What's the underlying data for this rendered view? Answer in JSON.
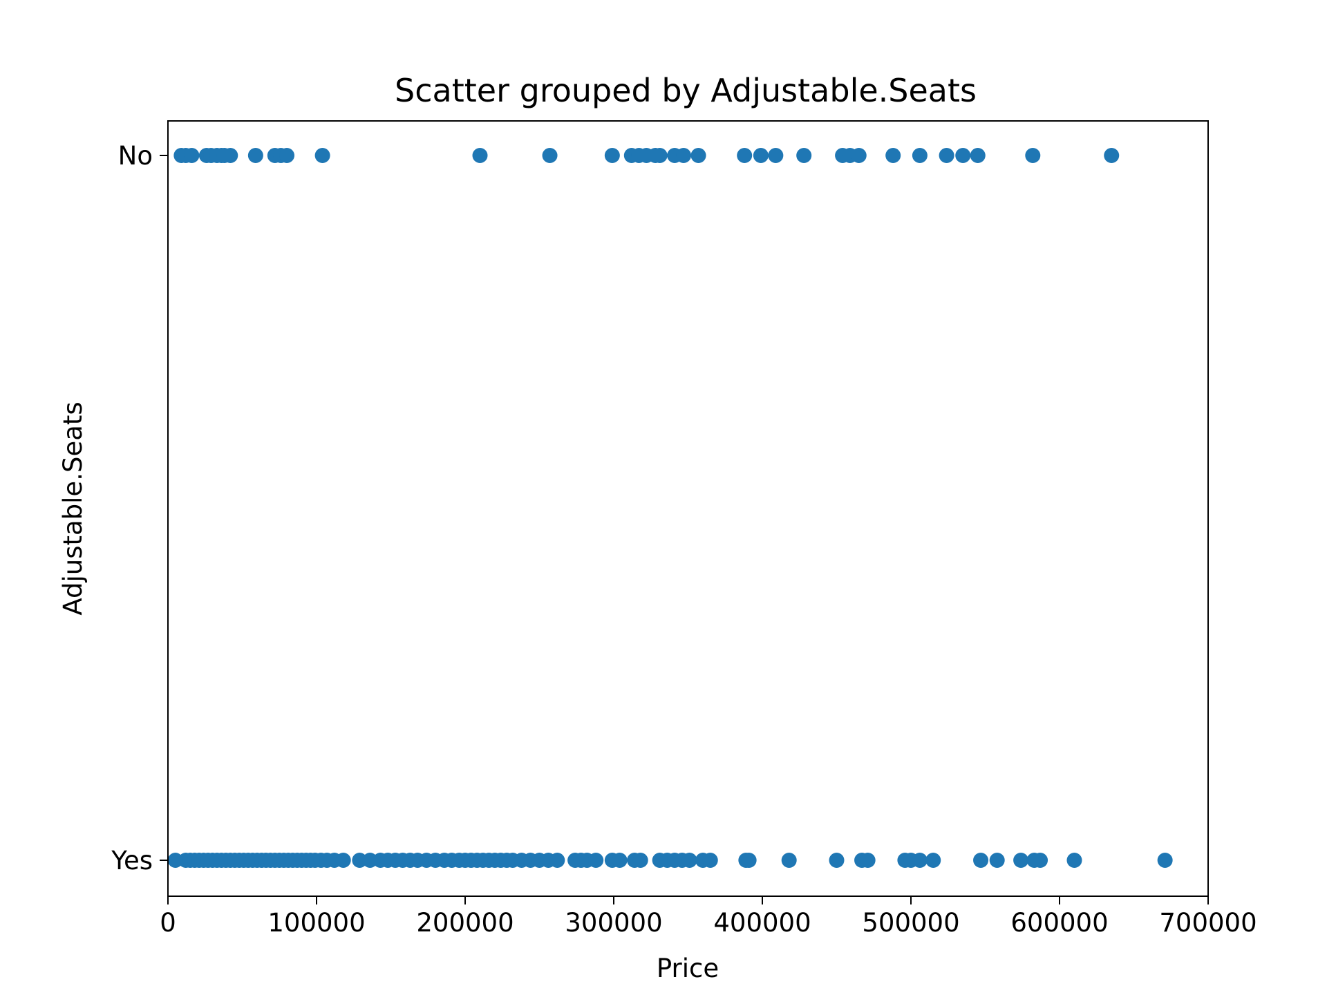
{
  "chart_data": {
    "type": "scatter",
    "title": "Scatter grouped by Adjustable.Seats",
    "xlabel": "Price",
    "ylabel": "Adjustable.Seats",
    "xlim": [
      0,
      700000
    ],
    "xticks": [
      0,
      100000,
      200000,
      300000,
      400000,
      500000,
      600000,
      700000
    ],
    "categories": [
      "Yes",
      "No"
    ],
    "grid": false,
    "color": "#1f77b4",
    "series": [
      {
        "category": "No",
        "x": [
          9000,
          12000,
          16000,
          26000,
          29000,
          33000,
          36000,
          38000,
          42000,
          59000,
          72000,
          76000,
          80000,
          104000,
          210000,
          257000,
          299000,
          312000,
          317000,
          322000,
          328000,
          331000,
          341000,
          347000,
          357000,
          388000,
          399000,
          409000,
          428000,
          454000,
          459000,
          465000,
          488000,
          506000,
          524000,
          535000,
          545000,
          582000,
          635000
        ]
      },
      {
        "category": "Yes",
        "x": [
          5000,
          12000,
          15000,
          18000,
          21000,
          24000,
          27000,
          30000,
          33000,
          36000,
          39000,
          42000,
          45000,
          48000,
          51000,
          54000,
          57000,
          60000,
          63000,
          66000,
          69000,
          72000,
          75000,
          78000,
          81000,
          84000,
          87000,
          90000,
          93000,
          96000,
          99000,
          103000,
          107000,
          112000,
          118000,
          129000,
          136000,
          143000,
          148000,
          153000,
          158000,
          163000,
          168000,
          174000,
          180000,
          186000,
          191000,
          196000,
          200000,
          204000,
          208000,
          212000,
          216000,
          220000,
          224000,
          228000,
          232000,
          238000,
          244000,
          250000,
          256000,
          262000,
          274000,
          278000,
          282000,
          288000,
          299000,
          304000,
          314000,
          318000,
          331000,
          336000,
          341000,
          346000,
          351000,
          360000,
          365000,
          389000,
          391000,
          418000,
          450000,
          467000,
          471000,
          496000,
          500000,
          506000,
          515000,
          547000,
          558000,
          574000,
          583000,
          587000,
          610000,
          671000
        ]
      }
    ]
  }
}
